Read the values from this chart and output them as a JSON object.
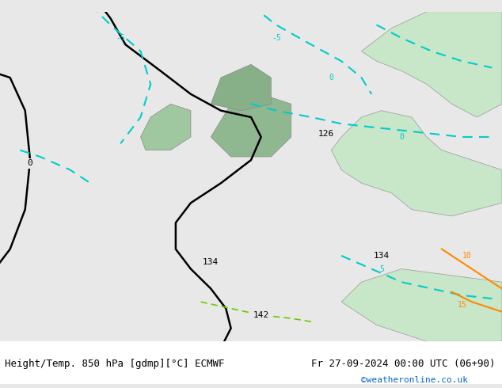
{
  "title_left": "Height/Temp. 850 hPa [gdmp][°C] ECMWF",
  "title_right": "Fr 27-09-2024 00:00 UTC (06+90)",
  "watermark": "©weatheronline.co.uk",
  "bg_color": "#e8e8e8",
  "land_color_north": "#c8e6c8",
  "fig_width": 6.34,
  "fig_height": 4.9,
  "dpi": 100,
  "text_color_left": "#000000",
  "text_color_right": "#000000",
  "watermark_color": "#0066cc",
  "font_size_bottom": 9,
  "font_size_watermark": 8,
  "contour_black_color": "#000000",
  "contour_cyan_color": "#00cccc",
  "contour_orange_color": "#ff8800",
  "contour_green_color": "#66cc00",
  "label_126": "126",
  "label_134_left": "134",
  "label_134_right": "134",
  "label_142": "142",
  "label_0": "0",
  "label_m5": "-5",
  "label_0b": "0",
  "label_5": "5",
  "label_10": "10",
  "label_15": "15"
}
